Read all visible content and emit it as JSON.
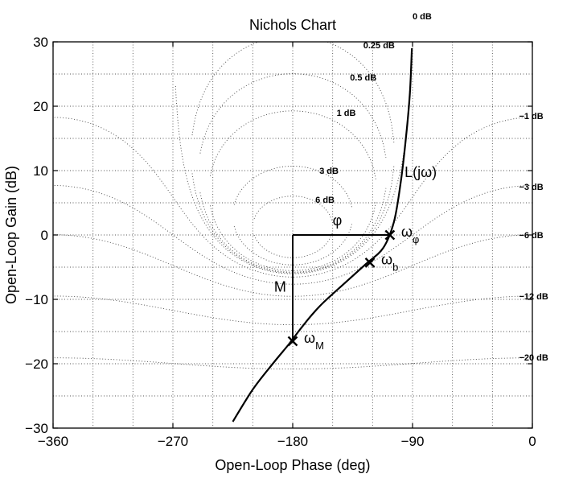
{
  "chart_data": {
    "type": "line",
    "title": "Nichols Chart",
    "xlabel": "Open-Loop Phase (deg)",
    "ylabel": "Open-Loop Gain (dB)",
    "xlim": [
      -360,
      0
    ],
    "ylim": [
      -30,
      30
    ],
    "x_ticks": [
      -360,
      -270,
      -180,
      -90,
      0
    ],
    "x_tick_labels": [
      "−360",
      "−270",
      "−180",
      "−90",
      "0"
    ],
    "y_ticks": [
      -30,
      -20,
      -10,
      0,
      10,
      20,
      30
    ],
    "y_tick_labels": [
      "−30",
      "−20",
      "−10",
      "0",
      "10",
      "20",
      "30"
    ],
    "grid": true,
    "m_contours_db": [
      0.25,
      0.5,
      1,
      3,
      6,
      -1,
      -3,
      -6,
      -12,
      -20
    ],
    "contour_labels": [
      {
        "text": "0 dB",
        "phase": -90,
        "gain": 34
      },
      {
        "text": "0.25 dB",
        "phase": -127,
        "gain": 29.5
      },
      {
        "text": "0.5 dB",
        "phase": -137,
        "gain": 24.5
      },
      {
        "text": "1 dB",
        "phase": -147,
        "gain": 19
      },
      {
        "text": "3 dB",
        "phase": -160,
        "gain": 10
      },
      {
        "text": "6 dB",
        "phase": -163,
        "gain": 5.5
      },
      {
        "text": "−1 dB",
        "phase": -10,
        "gain": 18.5
      },
      {
        "text": "−3 dB",
        "phase": -10,
        "gain": 7.5
      },
      {
        "text": "−6 dB",
        "phase": -10,
        "gain": 0
      },
      {
        "text": "−12 dB",
        "phase": -10,
        "gain": -9.5
      },
      {
        "text": "−20 dB",
        "phase": -10,
        "gain": -19
      }
    ],
    "series": [
      {
        "name": "L(jω)",
        "x": [
          -225,
          -210,
          -195,
          -183,
          -175,
          -166,
          -157,
          -140,
          -125,
          -112,
          -104,
          -99,
          -95,
          -92,
          -90.5
        ],
        "y": [
          -29,
          -24,
          -20,
          -17,
          -14.8,
          -12.5,
          -10.5,
          -7.3,
          -4.5,
          -2,
          2,
          8,
          15,
          22,
          29
        ]
      }
    ],
    "markers": [
      {
        "label": "ωφ",
        "main": "ω",
        "sub": "φ",
        "x": -107,
        "y": 0
      },
      {
        "label": "ωb",
        "main": "ω",
        "sub": "b",
        "x": -122,
        "y": -4.3
      },
      {
        "label": "ωM",
        "main": "ω",
        "sub": "M",
        "x": -180,
        "y": -16.5
      }
    ],
    "annotations": [
      {
        "text": "L(jω)",
        "x": -96,
        "y": 9
      },
      {
        "text": "φ",
        "x": -150,
        "y": 1.5
      },
      {
        "text": "M",
        "x": -194,
        "y": -8.8
      }
    ],
    "construction_lines": [
      {
        "x": [
          -180,
          -107
        ],
        "y": [
          0,
          0
        ]
      },
      {
        "x": [
          -180,
          -180
        ],
        "y": [
          0,
          -16.5
        ]
      }
    ]
  }
}
